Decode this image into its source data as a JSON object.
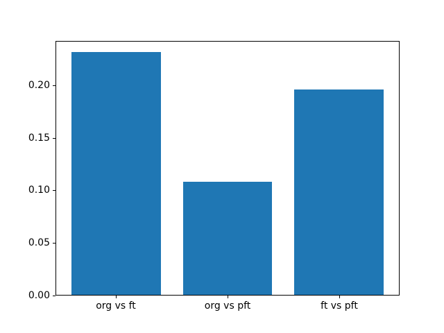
{
  "chart_data": {
    "type": "bar",
    "title": "",
    "xlabel": "",
    "ylabel": "",
    "categories": [
      "org vs ft",
      "org vs pft",
      "ft vs pft"
    ],
    "values": [
      0.232,
      0.108,
      0.196
    ],
    "bar_color": "#1f77b4",
    "bar_width": 0.8,
    "xlim": [
      -0.54,
      2.54
    ],
    "ylim": [
      0,
      0.242
    ],
    "yticks": [
      {
        "value": 0.0,
        "label": "0.00"
      },
      {
        "value": 0.05,
        "label": "0.05"
      },
      {
        "value": 0.1,
        "label": "0.10"
      },
      {
        "value": 0.15,
        "label": "0.15"
      },
      {
        "value": 0.2,
        "label": "0.20"
      }
    ],
    "grid": false,
    "legend": null,
    "background_color": "#ffffff",
    "axis_color": "#000000"
  }
}
